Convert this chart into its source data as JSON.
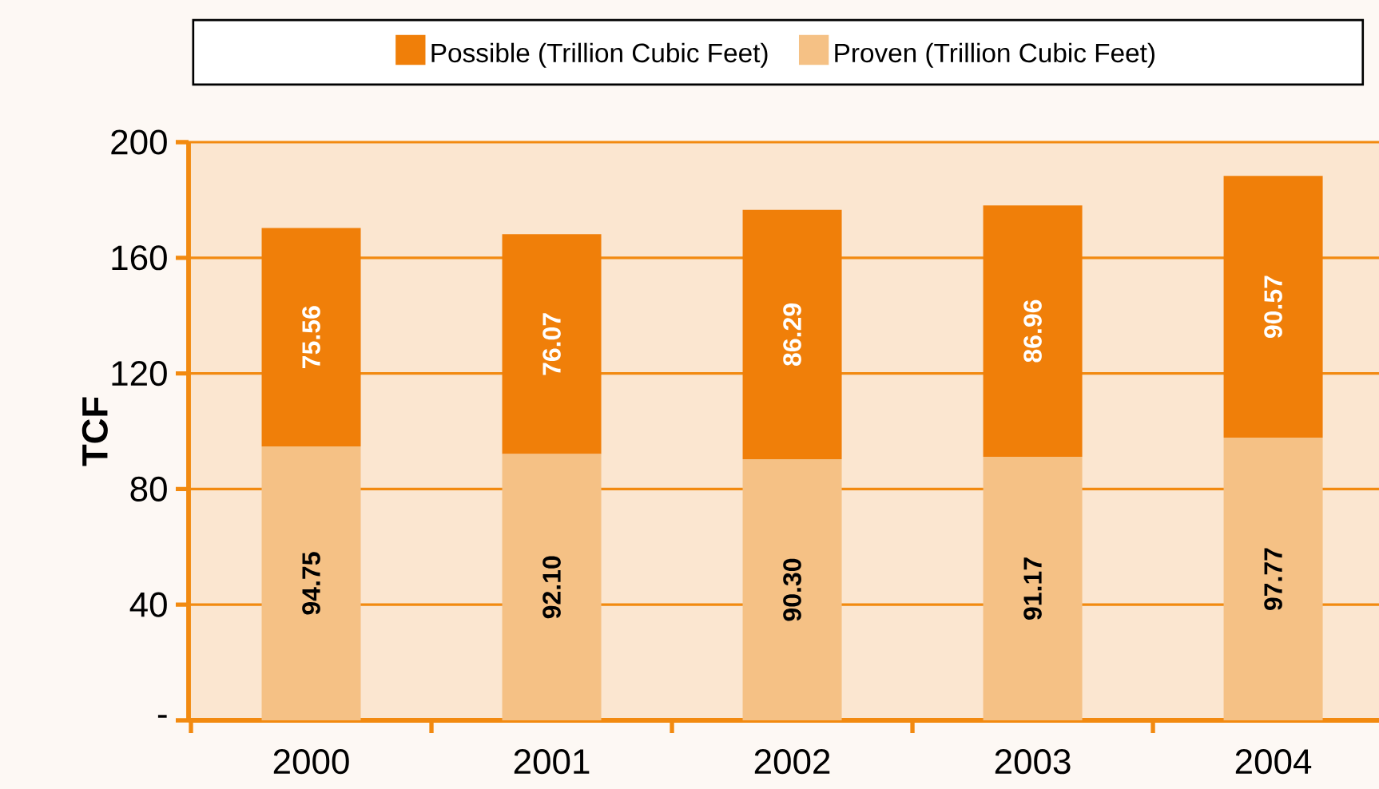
{
  "chart_data": {
    "type": "bar",
    "stacked": true,
    "ylabel": "TCF",
    "categories": [
      "2000",
      "2001",
      "2002",
      "2003",
      "2004"
    ],
    "series": [
      {
        "name": "Proven (Trillion Cubic Feet)",
        "color": "#f5c185",
        "values": [
          94.75,
          92.1,
          90.3,
          91.17,
          97.77
        ],
        "value_labels": [
          "94.75",
          "92.10",
          "90.30",
          "91.17",
          "97.77"
        ]
      },
      {
        "name": "Possible (Trillion Cubic Feet)",
        "color": "#f07f09",
        "values": [
          75.56,
          76.07,
          86.29,
          86.96,
          90.57
        ],
        "value_labels": [
          "75.56",
          "76.07",
          "86.29",
          "86.96",
          "90.57"
        ]
      }
    ],
    "ylim": [
      0,
      200
    ],
    "yticks": [
      {
        "value": 0,
        "label": "-"
      },
      40,
      80,
      120,
      160,
      200
    ],
    "grid": "y",
    "legend": "top"
  }
}
